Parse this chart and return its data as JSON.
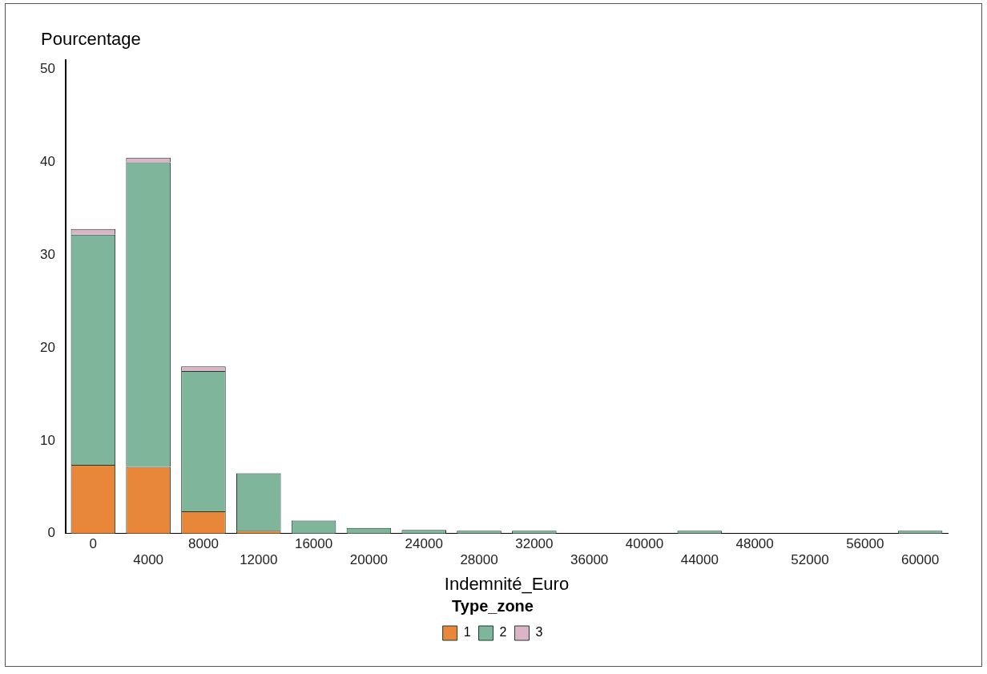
{
  "chart_data": {
    "type": "bar",
    "stacked": true,
    "xlabel": "Indemnité_Euro",
    "ylabel": "Pourcentage",
    "legend_title": "Type_zone",
    "legend": "bottom",
    "grid": false,
    "categories": [
      "0",
      "4000",
      "8000",
      "12000",
      "16000",
      "20000",
      "24000",
      "28000",
      "32000",
      "36000",
      "40000",
      "44000",
      "48000",
      "52000",
      "56000",
      "60000"
    ],
    "ylim": [
      0,
      51
    ],
    "yticks": [
      0,
      10,
      20,
      30,
      40,
      50
    ],
    "series": [
      {
        "name": "1",
        "color": "#e8873a",
        "values": [
          7.4,
          7.2,
          2.4,
          0.3,
          0,
          0,
          0,
          0,
          0,
          0,
          0,
          0,
          0,
          0,
          0,
          0
        ]
      },
      {
        "name": "2",
        "color": "#7fb59b",
        "values": [
          24.8,
          32.8,
          15.1,
          6.2,
          1.4,
          0.6,
          0.4,
          0.3,
          0.3,
          0,
          0,
          0.3,
          0,
          0,
          0,
          0.3
        ]
      },
      {
        "name": "3",
        "color": "#dcb4c8",
        "values": [
          0.6,
          0.5,
          0.5,
          0,
          0,
          0,
          0,
          0,
          0,
          0,
          0,
          0,
          0,
          0,
          0,
          0
        ]
      }
    ]
  }
}
